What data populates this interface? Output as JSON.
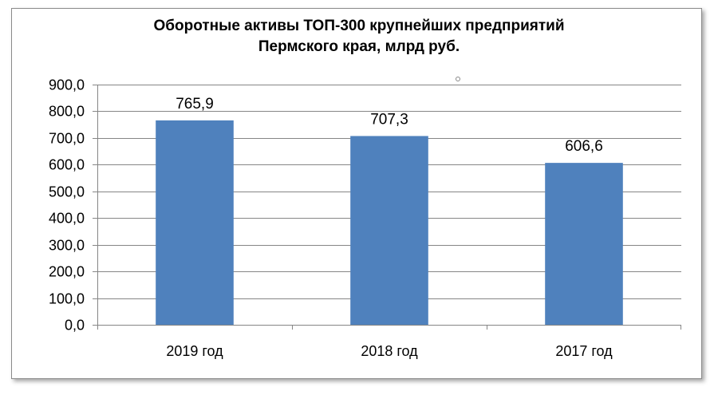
{
  "chart_data": {
    "type": "bar",
    "title_line1": "Оборотные активы ТОП-300 крупнейших предприятий",
    "title_line2": "Пермского края, млрд   руб.",
    "categories": [
      "2019 год",
      "2018 год",
      "2017 год"
    ],
    "values": [
      765.9,
      707.3,
      606.6
    ],
    "data_labels": [
      "765,9",
      "707,3",
      "606,6"
    ],
    "ylim": [
      0,
      900
    ],
    "yticks": [
      0,
      100,
      200,
      300,
      400,
      500,
      600,
      700,
      800,
      900
    ],
    "ytick_labels": [
      "0,0",
      "100,0",
      "200,0",
      "300,0",
      "400,0",
      "500,0",
      "600,0",
      "700,0",
      "800,0",
      "900,0"
    ],
    "grid": true,
    "legend": "none",
    "bar_color": "#4F81BD",
    "grid_color": "#868686"
  }
}
